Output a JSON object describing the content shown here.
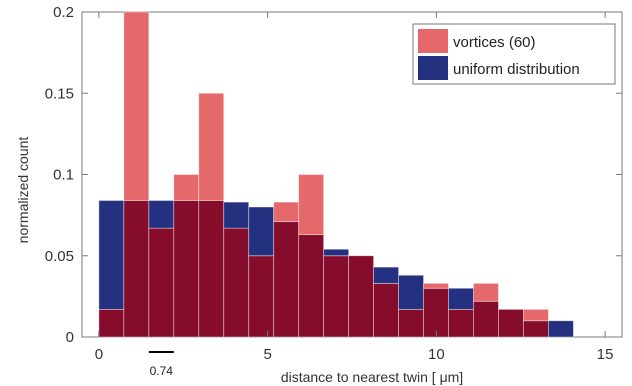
{
  "chart_data": {
    "type": "bar",
    "title": "",
    "xlabel": "distance to nearest twin [ μm]",
    "ylabel": "normalized count",
    "xlim": [
      -0.5,
      15.5
    ],
    "ylim": [
      0,
      0.2
    ],
    "xticks": [
      0,
      5,
      10,
      15
    ],
    "xtick_labels": [
      "0",
      "5",
      "10",
      "15"
    ],
    "yticks": [
      0,
      0.05,
      0.1,
      0.15,
      0.2
    ],
    "ytick_labels": [
      "0",
      "0.05",
      "0.1",
      "0.15",
      "0.2"
    ],
    "bin_width": 0.74,
    "bin_start": 0,
    "legend_position": "top-right",
    "annotation": {
      "text": "0.74",
      "x_start": 1.48,
      "x_end": 2.22
    },
    "colors": {
      "vortices": "#e5686b",
      "uniform": "#243080",
      "overlap": "#860c2c"
    },
    "series": [
      {
        "name": "vortices (60)",
        "values": [
          0.017,
          0.2,
          0.067,
          0.1,
          0.15,
          0.067,
          0.05,
          0.083,
          0.1,
          0.05,
          0.05,
          0.033,
          0.017,
          0.033,
          0.017,
          0.033,
          0.017,
          0.017,
          0
        ]
      },
      {
        "name": "uniform distribution",
        "values": [
          0.084,
          0.084,
          0.084,
          0.084,
          0.084,
          0.083,
          0.08,
          0.071,
          0.063,
          0.054,
          0.05,
          0.043,
          0.038,
          0.03,
          0.03,
          0.022,
          0.017,
          0.01,
          0.01
        ]
      }
    ]
  }
}
